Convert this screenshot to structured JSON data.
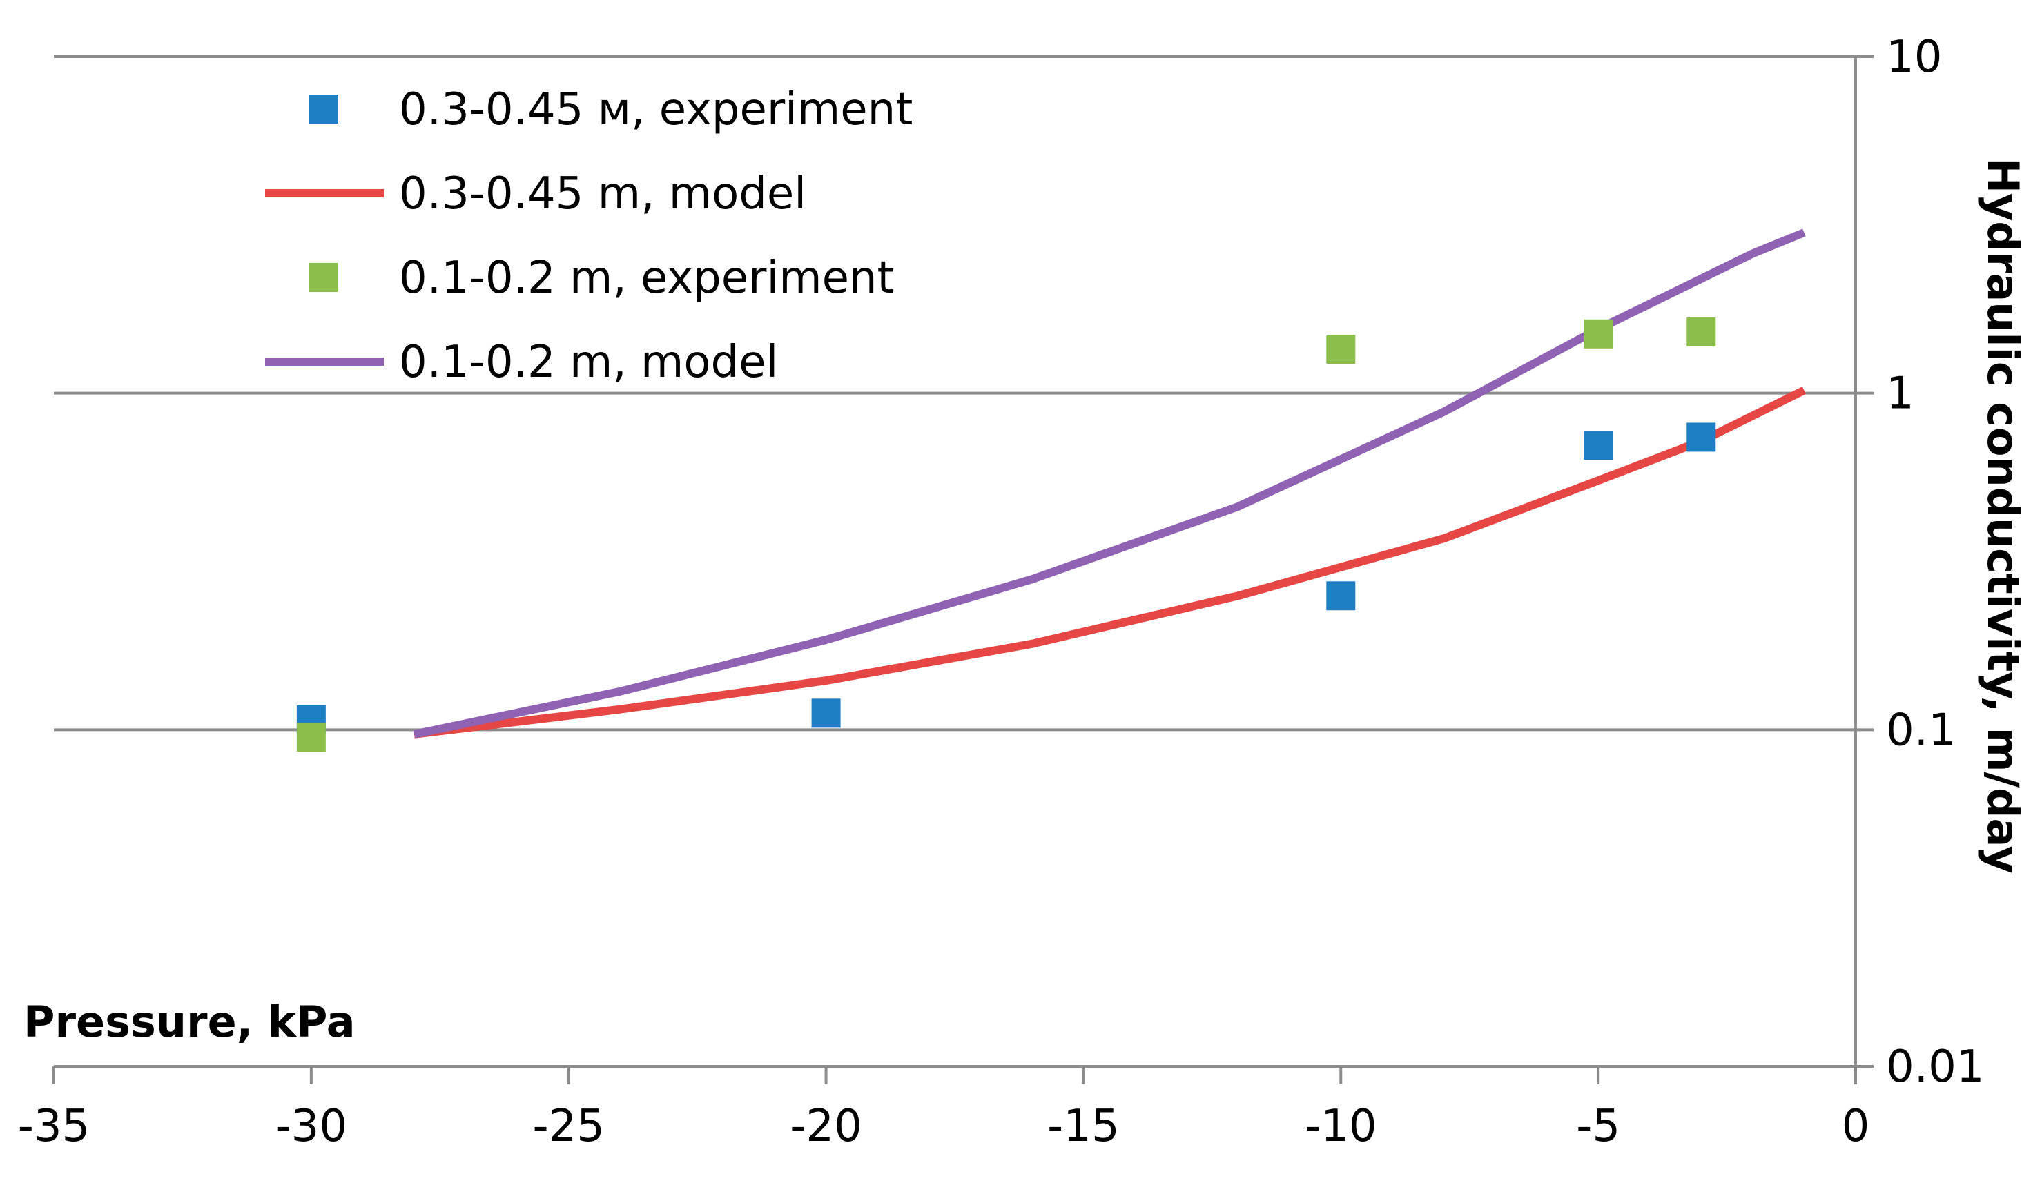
{
  "chart_data": {
    "type": "scatter",
    "title": "",
    "xlabel": "Pressure, kPa",
    "ylabel": "Hydraulic conductivity, m/day",
    "xlim": [
      -35,
      0
    ],
    "ylim": [
      0.01,
      10
    ],
    "yscale": "log",
    "x_ticks": [
      -35,
      -30,
      -25,
      -20,
      -15,
      -10,
      -5,
      0
    ],
    "x_tick_labels": [
      "-35",
      "-30",
      "-25",
      "-20",
      "-15",
      "-10",
      "-5",
      "0"
    ],
    "y_ticks": [
      0.01,
      0.1,
      1,
      10
    ],
    "y_tick_labels": [
      "0.01",
      "0.1",
      "1",
      "10"
    ],
    "y_axis_side": "right",
    "grid": "horizontal",
    "legend_position": "top-left",
    "series": [
      {
        "name": "0.3-0.45 м, experiment",
        "kind": "scatter",
        "color": "#1f7fc4",
        "points": [
          {
            "x": -30,
            "y": 0.107
          },
          {
            "x": -20,
            "y": 0.112
          },
          {
            "x": -10,
            "y": 0.25
          },
          {
            "x": -5,
            "y": 0.7
          },
          {
            "x": -3,
            "y": 0.74
          }
        ]
      },
      {
        "name": "0.3-0.45 m, model",
        "kind": "line",
        "color": "#e64745",
        "points": [
          {
            "x": -28,
            "y": 0.097
          },
          {
            "x": -24,
            "y": 0.115
          },
          {
            "x": -20,
            "y": 0.14
          },
          {
            "x": -16,
            "y": 0.18
          },
          {
            "x": -12,
            "y": 0.25
          },
          {
            "x": -8,
            "y": 0.37
          },
          {
            "x": -5,
            "y": 0.55
          },
          {
            "x": -3,
            "y": 0.72
          },
          {
            "x": -1,
            "y": 1.02
          }
        ]
      },
      {
        "name": "0.1-0.2 m, experiment",
        "kind": "scatter",
        "color": "#8cbf4a",
        "points": [
          {
            "x": -30,
            "y": 0.095
          },
          {
            "x": -10,
            "y": 1.35
          },
          {
            "x": -5,
            "y": 1.5
          },
          {
            "x": -3,
            "y": 1.52
          }
        ]
      },
      {
        "name": "0.1-0.2 m, model",
        "kind": "line",
        "color": "#8f62b3",
        "points": [
          {
            "x": -28,
            "y": 0.097
          },
          {
            "x": -24,
            "y": 0.13
          },
          {
            "x": -20,
            "y": 0.185
          },
          {
            "x": -16,
            "y": 0.28
          },
          {
            "x": -12,
            "y": 0.46
          },
          {
            "x": -8,
            "y": 0.88
          },
          {
            "x": -5,
            "y": 1.55
          },
          {
            "x": -2,
            "y": 2.6
          },
          {
            "x": -1,
            "y": 3.0
          }
        ]
      }
    ]
  }
}
